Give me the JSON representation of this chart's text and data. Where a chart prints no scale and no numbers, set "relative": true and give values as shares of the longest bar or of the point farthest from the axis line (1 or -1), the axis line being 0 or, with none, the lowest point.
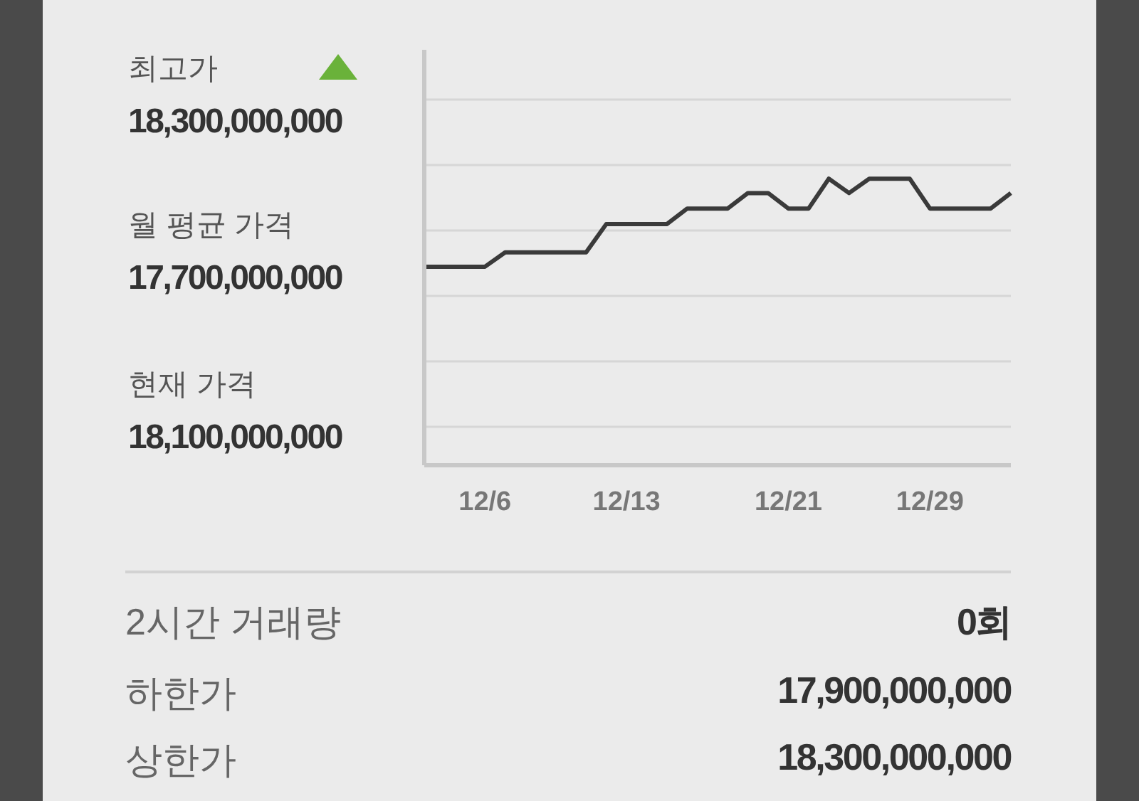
{
  "chart_data": {
    "type": "line",
    "relative": true,
    "grid": "y",
    "marker": "none",
    "line_style": "solid",
    "categories": [
      null,
      null,
      null,
      "12/6",
      null,
      null,
      null,
      null,
      null,
      null,
      "12/13",
      null,
      null,
      null,
      null,
      null,
      null,
      null,
      "12/21",
      null,
      null,
      null,
      null,
      null,
      null,
      "12/29",
      null,
      null,
      null,
      null
    ],
    "series": [
      {
        "color": "#3a3a3a",
        "values": [
          0.693,
          0.693,
          0.693,
          0.693,
          0.743,
          0.743,
          0.743,
          0.743,
          0.743,
          0.842,
          0.842,
          0.842,
          0.842,
          0.896,
          0.896,
          0.896,
          0.95,
          0.95,
          0.896,
          0.896,
          1,
          0.95,
          1,
          1,
          1,
          0.896,
          0.896,
          0.896,
          0.896,
          0.95
        ]
      }
    ],
    "annotations": [
      "최고가",
      "18,300,000,000",
      "월 평균 가격",
      "17,700,000,000",
      "현재 가격",
      "18,100,000,000",
      "2시간 거래량",
      "0회",
      "하한가",
      "17,900,000,000",
      "상한가",
      "18,300,000,000"
    ]
  }
}
